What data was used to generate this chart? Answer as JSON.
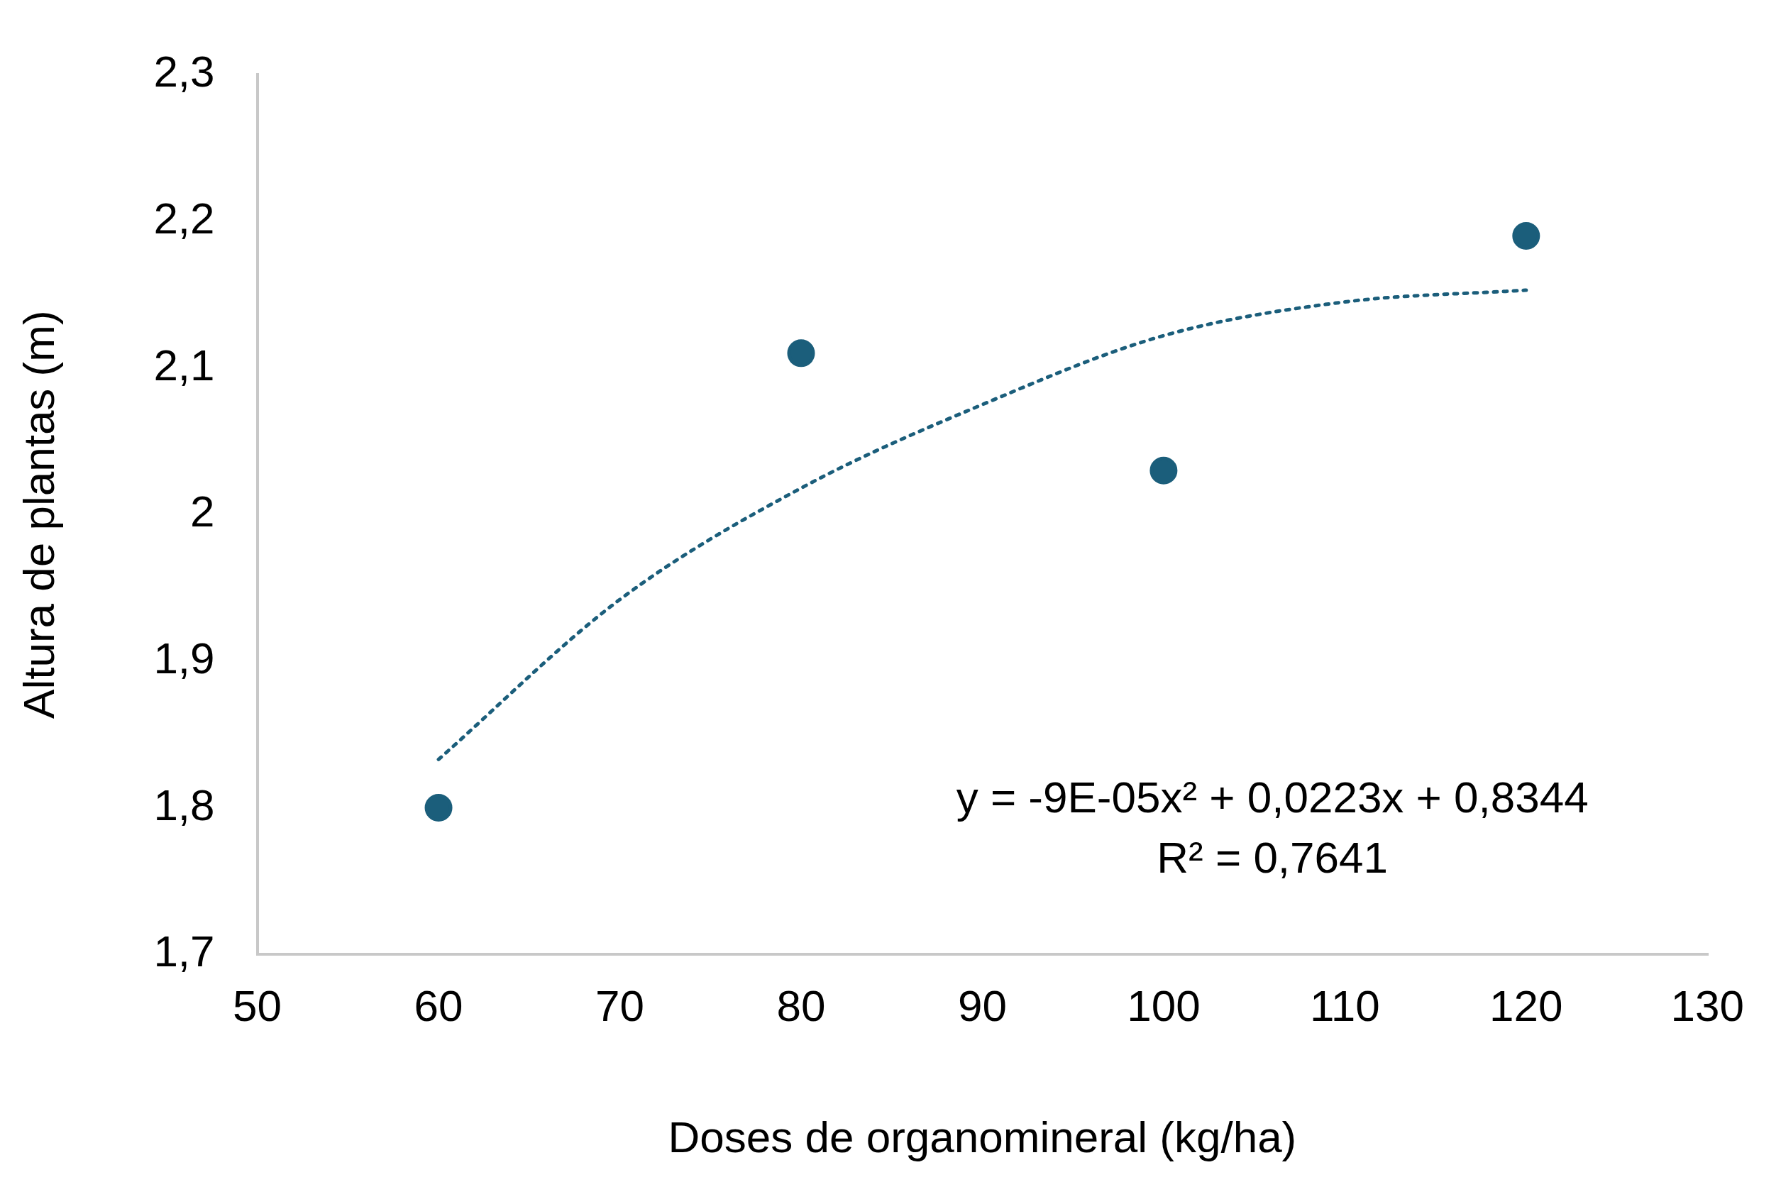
{
  "chart_data": {
    "type": "scatter",
    "xlabel": "Doses de organomineral (kg/ha)",
    "ylabel": "Altura de plantas (m)",
    "xlim": [
      50,
      130
    ],
    "xticks": [
      50,
      60,
      70,
      80,
      90,
      100,
      110,
      120,
      130
    ],
    "ylim": [
      1.7,
      2.3
    ],
    "yticks": [
      {
        "value": 1.7,
        "label": "1,7"
      },
      {
        "value": 1.8,
        "label": "1,8"
      },
      {
        "value": 1.9,
        "label": "1,9"
      },
      {
        "value": 2,
        "label": "2"
      },
      {
        "value": 2.1,
        "label": "2,1"
      },
      {
        "value": 2.2,
        "label": "2,2"
      },
      {
        "value": 2.3,
        "label": "2,3"
      }
    ],
    "grid": false,
    "legend": false,
    "series": [
      {
        "type": "scatter",
        "color": "#1b5e7b",
        "marker": "circle",
        "x": [
          60,
          80,
          100,
          120
        ],
        "values": [
          1.8,
          2.11,
          2.03,
          2.19
        ]
      },
      {
        "type": "line",
        "color": "#1b5e7b",
        "marker": "none",
        "line_style": "dotted",
        "x": [
          60,
          70,
          80,
          90,
          100,
          110,
          120
        ],
        "values": [
          1.833,
          1.942,
          2.018,
          2.075,
          2.122,
          2.145,
          2.153
        ]
      }
    ],
    "annotations": [
      "y = -9E-05x² + 0,0223x + 0,8344",
      "R² = 0,7641"
    ]
  }
}
